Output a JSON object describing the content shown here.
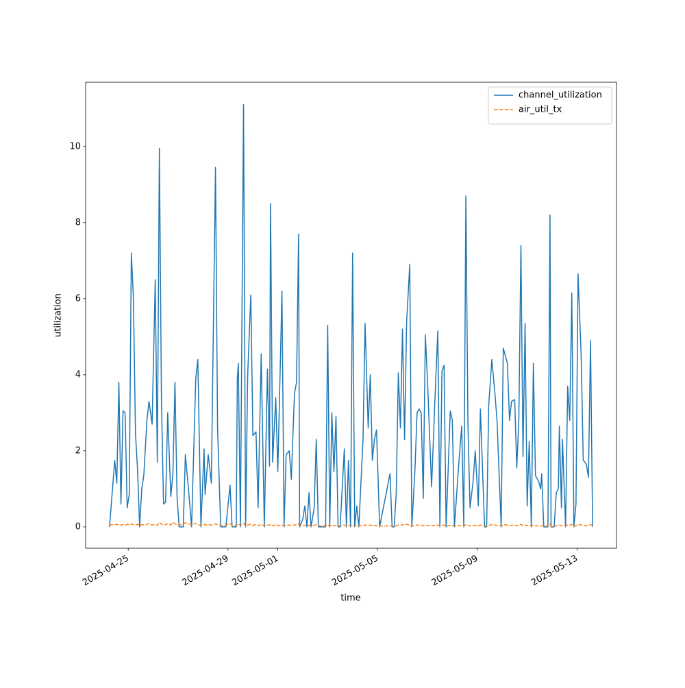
{
  "chart_data": {
    "type": "line",
    "x": [
      "2025-04-24 06:00",
      "2025-04-24 11:00",
      "2025-04-24 13:00",
      "2025-04-24 15:00",
      "2025-04-24 17:00",
      "2025-04-24 19:00",
      "2025-04-24 21:00",
      "2025-04-24 23:00",
      "2025-04-25 01:00",
      "2025-04-25 03:00",
      "2025-04-25 05:00",
      "2025-04-25 07:00",
      "2025-04-25 09:00",
      "2025-04-25 11:00",
      "2025-04-25 13:00",
      "2025-04-25 15:00",
      "2025-04-25 18:00",
      "2025-04-25 20:00",
      "2025-04-25 23:00",
      "2025-04-26 02:00",
      "2025-04-26 04:00",
      "2025-04-26 06:00",
      "2025-04-26 08:00",
      "2025-04-26 10:00",
      "2025-04-26 12:00",
      "2025-04-26 14:00",
      "2025-04-26 17:00",
      "2025-04-26 19:00",
      "2025-04-26 21:00",
      "2025-04-26 23:00",
      "2025-04-27 01:00",
      "2025-04-27 05:00",
      "2025-04-27 07:00",
      "2025-04-27 10:00",
      "2025-04-27 13:00",
      "2025-04-27 17:00",
      "2025-04-27 19:00",
      "2025-04-27 22:00",
      "2025-04-28 01:00",
      "2025-04-28 02:00",
      "2025-04-28 05:00",
      "2025-04-28 08:00",
      "2025-04-28 12:00",
      "2025-04-28 14:00",
      "2025-04-28 17:00",
      "2025-04-28 22:00",
      "2025-04-29 02:00",
      "2025-04-29 04:00",
      "2025-04-29 08:00",
      "2025-04-29 09:00",
      "2025-04-29 10:00",
      "2025-04-29 12:00",
      "2025-04-29 15:00",
      "2025-04-29 17:00",
      "2025-04-29 19:00",
      "2025-04-29 22:00",
      "2025-04-30 00:00",
      "2025-04-30 03:00",
      "2025-04-30 05:00",
      "2025-04-30 08:00",
      "2025-04-30 11:00",
      "2025-04-30 14:00",
      "2025-04-30 16:00",
      "2025-04-30 17:00",
      "2025-04-30 19:00",
      "2025-04-30 22:00",
      "2025-05-01 00:00",
      "2025-05-01 04:00",
      "2025-05-01 06:00",
      "2025-05-01 08:00",
      "2025-05-01 11:00",
      "2025-05-01 13:00",
      "2025-05-01 16:00",
      "2025-05-01 18:00",
      "2025-05-01 20:00",
      "2025-05-01 21:00",
      "2025-05-02 00:00",
      "2025-05-02 02:00",
      "2025-05-02 04:00",
      "2025-05-02 06:00",
      "2025-05-02 08:00",
      "2025-05-02 11:00",
      "2025-05-02 13:00",
      "2025-05-02 15:00",
      "2025-05-02 19:00",
      "2025-05-02 22:00",
      "2025-05-03 00:00",
      "2025-05-03 02:00",
      "2025-05-03 04:00",
      "2025-05-03 06:00",
      "2025-05-03 08:00",
      "2025-05-03 10:00",
      "2025-05-03 12:00",
      "2025-05-03 16:00",
      "2025-05-03 18:00",
      "2025-05-03 20:00",
      "2025-05-03 22:00",
      "2025-05-04 00:00",
      "2025-05-04 02:00",
      "2025-05-04 04:00",
      "2025-05-04 06:00",
      "2025-05-04 10:00",
      "2025-05-04 12:00",
      "2025-05-04 15:00",
      "2025-05-04 17:00",
      "2025-05-04 19:00",
      "2025-05-04 21:00",
      "2025-05-04 23:00",
      "2025-05-05 02:00",
      "2025-05-05 12:00",
      "2025-05-05 14:00",
      "2025-05-05 16:00",
      "2025-05-05 18:00",
      "2025-05-05 20:00",
      "2025-05-05 22:00",
      "2025-05-06 00:00",
      "2025-05-06 02:00",
      "2025-05-06 04:00",
      "2025-05-06 07:00",
      "2025-05-06 09:00",
      "2025-05-06 12:00",
      "2025-05-06 14:00",
      "2025-05-06 16:00",
      "2025-05-06 18:00",
      "2025-05-06 20:00",
      "2025-05-06 22:00",
      "2025-05-07 00:00",
      "2025-05-07 04:00",
      "2025-05-07 07:00",
      "2025-05-07 10:00",
      "2025-05-07 12:00",
      "2025-05-07 14:00",
      "2025-05-07 16:00",
      "2025-05-07 18:00",
      "2025-05-07 22:00",
      "2025-05-08 00:00",
      "2025-05-08 02:00",
      "2025-05-08 06:00",
      "2025-05-08 09:00",
      "2025-05-08 11:00",
      "2025-05-08 13:00",
      "2025-05-08 15:00",
      "2025-05-08 17:00",
      "2025-05-08 20:00",
      "2025-05-08 22:00",
      "2025-05-09 01:00",
      "2025-05-09 03:00",
      "2025-05-09 07:00",
      "2025-05-09 09:00",
      "2025-05-09 11:00",
      "2025-05-09 14:00",
      "2025-05-09 17:00",
      "2025-05-09 19:00",
      "2025-05-09 23:00",
      "2025-05-10 01:00",
      "2025-05-10 05:00",
      "2025-05-10 07:00",
      "2025-05-10 09:00",
      "2025-05-10 12:00",
      "2025-05-10 14:00",
      "2025-05-10 16:00",
      "2025-05-10 18:00",
      "2025-05-10 20:00",
      "2025-05-10 22:00",
      "2025-05-11 00:00",
      "2025-05-11 02:00",
      "2025-05-11 04:00",
      "2025-05-11 06:00",
      "2025-05-11 08:00",
      "2025-05-11 11:00",
      "2025-05-11 13:00",
      "2025-05-11 14:00",
      "2025-05-11 16:00",
      "2025-05-11 20:00",
      "2025-05-11 22:00",
      "2025-05-11 23:00",
      "2025-05-12 02:00",
      "2025-05-12 04:00",
      "2025-05-12 06:00",
      "2025-05-12 07:00",
      "2025-05-12 09:00",
      "2025-05-12 10:00",
      "2025-05-12 13:00",
      "2025-05-12 15:00",
      "2025-05-12 17:00",
      "2025-05-12 19:00",
      "2025-05-12 21:00",
      "2025-05-12 23:00",
      "2025-05-13 01:00",
      "2025-05-13 04:00",
      "2025-05-13 06:00",
      "2025-05-13 09:00",
      "2025-05-13 11:00",
      "2025-05-13 13:00",
      "2025-05-13 15:00"
    ],
    "series": [
      {
        "name": "channel_utilization",
        "color": "#1f77b4",
        "linestyle": "solid",
        "values": [
          0,
          1.75,
          1.15,
          3.8,
          0.6,
          3.05,
          3.0,
          0.5,
          0.85,
          7.2,
          6.0,
          2.45,
          1.5,
          0.0,
          1.0,
          1.35,
          2.8,
          3.3,
          2.7,
          6.5,
          1.7,
          9.95,
          3.3,
          0.6,
          0.65,
          3.0,
          0.8,
          1.4,
          3.8,
          0.8,
          0.0,
          0.0,
          1.9,
          1.0,
          0.0,
          3.9,
          4.4,
          0.0,
          2.05,
          0.85,
          1.9,
          1.15,
          9.45,
          2.6,
          0.0,
          0.0,
          1.1,
          0.0,
          0.0,
          3.9,
          4.3,
          0.0,
          11.1,
          0.0,
          4.0,
          6.1,
          2.4,
          2.5,
          0.5,
          4.55,
          0.0,
          4.15,
          1.6,
          8.5,
          1.7,
          3.4,
          1.45,
          6.2,
          0.0,
          1.9,
          2.0,
          1.25,
          3.5,
          3.8,
          7.7,
          0.0,
          0.2,
          0.55,
          0.0,
          0.9,
          0.0,
          0.5,
          2.3,
          0.0,
          0.0,
          0.0,
          5.3,
          0.0,
          3.0,
          1.45,
          2.9,
          0.0,
          0.0,
          2.05,
          0.0,
          1.75,
          0.0,
          7.2,
          0.0,
          0.55,
          0.0,
          2.3,
          5.35,
          2.6,
          4.0,
          1.75,
          2.3,
          2.55,
          0.0,
          1.4,
          0.0,
          0.0,
          0.9,
          4.05,
          2.6,
          5.2,
          2.3,
          5.4,
          6.9,
          0.0,
          1.5,
          3.0,
          3.1,
          3.0,
          0.75,
          5.05,
          3.9,
          1.05,
          3.2,
          5.15,
          0.0,
          4.1,
          4.25,
          0.0,
          3.05,
          2.8,
          0.0,
          1.6,
          2.65,
          0.0,
          8.7,
          2.7,
          0.5,
          1.2,
          2.0,
          0.55,
          3.1,
          0.0,
          0.0,
          3.2,
          4.4,
          3.5,
          2.8,
          0.0,
          4.7,
          4.3,
          2.8,
          3.3,
          3.35,
          1.55,
          2.85,
          7.4,
          1.85,
          5.35,
          0.55,
          2.25,
          0.0,
          4.3,
          1.35,
          1.2,
          1.0,
          1.4,
          0.0,
          0.0,
          8.2,
          0.0,
          0.0,
          0.9,
          1.0,
          2.65,
          0.5,
          2.3,
          0.0,
          3.7,
          2.8,
          6.15,
          0.0,
          0.6,
          6.65,
          4.5,
          1.75,
          1.65,
          1.3,
          4.9,
          0.0
        ]
      },
      {
        "name": "air_util_tx",
        "color": "#ff7f0e",
        "linestyle": "dashed",
        "values": [
          0.05,
          0.07,
          0.06,
          0.07,
          0.05,
          0.06,
          0.04,
          0.07,
          0.06,
          0.08,
          0.06,
          0.05,
          0.07,
          0.04,
          0.06,
          0.05,
          0.07,
          0.09,
          0.05,
          0.06,
          0.04,
          0.12,
          0.07,
          0.05,
          0.06,
          0.08,
          0.05,
          0.12,
          0.09,
          0.06,
          0.05,
          0.07,
          0.11,
          0.08,
          0.06,
          0.09,
          0.06,
          0.04,
          0.07,
          0.05,
          0.06,
          0.05,
          0.08,
          0.06,
          0.04,
          0.05,
          0.09,
          0.04,
          0.03,
          0.06,
          0.08,
          0.04,
          0.1,
          0.03,
          0.05,
          0.07,
          0.04,
          0.06,
          0.03,
          0.07,
          0.03,
          0.05,
          0.04,
          0.07,
          0.03,
          0.06,
          0.04,
          0.05,
          0.03,
          0.04,
          0.05,
          0.04,
          0.05,
          0.06,
          0.07,
          0.03,
          0.03,
          0.04,
          0.02,
          0.05,
          0.03,
          0.04,
          0.06,
          0.03,
          0.02,
          0.03,
          0.06,
          0.02,
          0.05,
          0.03,
          0.04,
          0.02,
          0.03,
          0.05,
          0.02,
          0.04,
          0.03,
          0.06,
          0.02,
          0.04,
          0.02,
          0.04,
          0.05,
          0.03,
          0.05,
          0.03,
          0.04,
          0.04,
          0.02,
          0.03,
          0.02,
          0.02,
          0.03,
          0.05,
          0.04,
          0.06,
          0.04,
          0.07,
          0.05,
          0.02,
          0.04,
          0.05,
          0.04,
          0.05,
          0.03,
          0.05,
          0.04,
          0.03,
          0.04,
          0.05,
          0.02,
          0.04,
          0.05,
          0.02,
          0.04,
          0.04,
          0.02,
          0.03,
          0.04,
          0.02,
          0.06,
          0.04,
          0.03,
          0.04,
          0.04,
          0.03,
          0.05,
          0.02,
          0.02,
          0.04,
          0.06,
          0.05,
          0.04,
          0.02,
          0.06,
          0.05,
          0.04,
          0.04,
          0.05,
          0.03,
          0.04,
          0.07,
          0.03,
          0.05,
          0.03,
          0.04,
          0.02,
          0.05,
          0.03,
          0.03,
          0.02,
          0.03,
          0.02,
          0.02,
          0.08,
          0.02,
          0.02,
          0.03,
          0.04,
          0.05,
          0.03,
          0.04,
          0.02,
          0.05,
          0.04,
          0.07,
          0.02,
          0.03,
          0.07,
          0.05,
          0.04,
          0.03,
          0.04,
          0.06,
          0.03
        ]
      }
    ],
    "xlabel": "time",
    "ylabel": "utilization",
    "xlim": [
      "2025-04-23 07:00",
      "2025-05-14 14:00"
    ],
    "xticks": [
      "2025-04-25",
      "2025-04-29",
      "2025-05-01",
      "2025-05-05",
      "2025-05-09",
      "2025-05-13"
    ],
    "ylim": [
      -0.56,
      11.69
    ],
    "yticks": [
      0,
      2,
      4,
      6,
      8,
      10
    ],
    "grid": false,
    "legend": "upper right"
  }
}
